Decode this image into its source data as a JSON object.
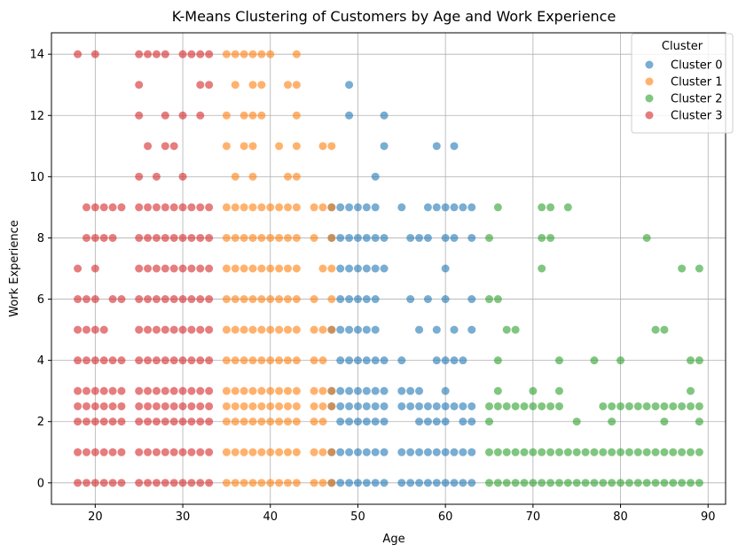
{
  "chart_data": {
    "type": "scatter",
    "title": "K-Means Clustering of Customers by Age and Work Experience",
    "xlabel": "Age",
    "ylabel": "Work Experience",
    "xlim": [
      15,
      92
    ],
    "ylim": [
      -0.7,
      14.7
    ],
    "xticks": [
      20,
      30,
      40,
      50,
      60,
      70,
      80,
      90
    ],
    "yticks": [
      0,
      2,
      4,
      6,
      8,
      10,
      12,
      14
    ],
    "grid": true,
    "legend": {
      "title": "Cluster",
      "position": "top-right"
    },
    "series": [
      {
        "name": "Cluster 0",
        "color": "#1f77b4",
        "x_range": [
          47,
          64
        ],
        "rows": [
          {
            "y": 0,
            "x": [
              47,
              48,
              49,
              50,
              51,
              52,
              53,
              55,
              56,
              57,
              58,
              59,
              60,
              61,
              62,
              63
            ]
          },
          {
            "y": 1,
            "x": [
              47,
              48,
              49,
              50,
              51,
              52,
              53,
              55,
              56,
              57,
              58,
              59,
              60,
              61,
              62,
              63
            ]
          },
          {
            "y": 2,
            "x": [
              48,
              49,
              50,
              51,
              52,
              53,
              57,
              58,
              59,
              60,
              62,
              63
            ]
          },
          {
            "y": 2.5,
            "x": [
              47,
              48,
              49,
              50,
              51,
              52,
              53,
              55,
              56,
              57,
              58,
              59,
              60,
              61,
              62,
              63
            ]
          },
          {
            "y": 3,
            "x": [
              47,
              48,
              49,
              50,
              51,
              52,
              53,
              55,
              56,
              57,
              60
            ]
          },
          {
            "y": 4,
            "x": [
              48,
              49,
              50,
              51,
              52,
              53,
              55,
              59,
              60,
              61,
              62
            ]
          },
          {
            "y": 5,
            "x": [
              47,
              48,
              49,
              50,
              51,
              52,
              57,
              59,
              61,
              63
            ]
          },
          {
            "y": 6,
            "x": [
              48,
              49,
              50,
              51,
              52,
              56,
              58,
              60,
              63
            ]
          },
          {
            "y": 7,
            "x": [
              48,
              49,
              50,
              51,
              52,
              53,
              60
            ]
          },
          {
            "y": 8,
            "x": [
              47,
              48,
              49,
              50,
              51,
              52,
              53,
              56,
              57,
              58,
              60,
              61,
              63
            ]
          },
          {
            "y": 9,
            "x": [
              47,
              48,
              49,
              50,
              51,
              52,
              55,
              58,
              59,
              60,
              61,
              62,
              63
            ]
          },
          {
            "y": 10,
            "x": [
              52
            ]
          },
          {
            "y": 11,
            "x": [
              53,
              59,
              61
            ]
          },
          {
            "y": 12,
            "x": [
              49,
              53
            ]
          },
          {
            "y": 13,
            "x": [
              49
            ]
          }
        ]
      },
      {
        "name": "Cluster 1",
        "color": "#ff7f0e",
        "x_range": [
          35,
          47
        ],
        "rows": [
          {
            "y": 0,
            "x": [
              35,
              36,
              37,
              38,
              39,
              40,
              41,
              42,
              43,
              45,
              46,
              47
            ]
          },
          {
            "y": 1,
            "x": [
              35,
              36,
              37,
              38,
              39,
              40,
              41,
              42,
              43,
              45,
              46,
              47
            ]
          },
          {
            "y": 2,
            "x": [
              35,
              36,
              37,
              38,
              39,
              40,
              41,
              42,
              43,
              45,
              46
            ]
          },
          {
            "y": 2.5,
            "x": [
              35,
              36,
              37,
              38,
              39,
              40,
              41,
              42,
              43,
              45,
              46,
              47
            ]
          },
          {
            "y": 3,
            "x": [
              35,
              36,
              37,
              38,
              39,
              40,
              41,
              42,
              43,
              45,
              46,
              47
            ]
          },
          {
            "y": 4,
            "x": [
              35,
              36,
              37,
              38,
              39,
              40,
              41,
              42,
              43,
              45,
              46
            ]
          },
          {
            "y": 5,
            "x": [
              35,
              36,
              37,
              38,
              39,
              40,
              41,
              42,
              43,
              45,
              46,
              47
            ]
          },
          {
            "y": 6,
            "x": [
              35,
              36,
              37,
              38,
              39,
              40,
              41,
              42,
              43,
              45,
              47
            ]
          },
          {
            "y": 7,
            "x": [
              35,
              36,
              37,
              38,
              39,
              40,
              41,
              42,
              43,
              46,
              47
            ]
          },
          {
            "y": 8,
            "x": [
              35,
              36,
              37,
              38,
              39,
              40,
              41,
              42,
              43,
              45,
              47
            ]
          },
          {
            "y": 9,
            "x": [
              35,
              36,
              37,
              38,
              39,
              40,
              41,
              42,
              43,
              45,
              46,
              47
            ]
          },
          {
            "y": 10,
            "x": [
              36,
              38,
              42,
              43
            ]
          },
          {
            "y": 11,
            "x": [
              35,
              37,
              38,
              41,
              43,
              46,
              47
            ]
          },
          {
            "y": 12,
            "x": [
              35,
              37,
              38,
              39,
              43
            ]
          },
          {
            "y": 13,
            "x": [
              36,
              38,
              39,
              42,
              43
            ]
          },
          {
            "y": 14,
            "x": [
              35,
              36,
              37,
              38,
              39,
              40,
              43
            ]
          }
        ]
      },
      {
        "name": "Cluster 2",
        "color": "#2ca02c",
        "x_range": [
          65,
          89
        ],
        "rows": [
          {
            "y": 0,
            "x": [
              65,
              66,
              67,
              68,
              69,
              70,
              71,
              72,
              73,
              74,
              75,
              76,
              77,
              78,
              79,
              80,
              81,
              82,
              83,
              84,
              85,
              86,
              87,
              88,
              89
            ]
          },
          {
            "y": 1,
            "x": [
              65,
              66,
              67,
              68,
              69,
              70,
              71,
              72,
              73,
              74,
              75,
              76,
              77,
              78,
              79,
              80,
              81,
              82,
              83,
              84,
              85,
              86,
              87,
              88,
              89
            ]
          },
          {
            "y": 2,
            "x": [
              65,
              75,
              79,
              85,
              89
            ]
          },
          {
            "y": 2.5,
            "x": [
              65,
              66,
              67,
              68,
              69,
              70,
              71,
              72,
              73,
              78,
              79,
              80,
              81,
              82,
              83,
              84,
              85,
              86,
              87,
              88,
              89
            ]
          },
          {
            "y": 3,
            "x": [
              66,
              70,
              73,
              88
            ]
          },
          {
            "y": 4,
            "x": [
              66,
              73,
              77,
              80,
              88,
              89
            ]
          },
          {
            "y": 5,
            "x": [
              67,
              68,
              84,
              85
            ]
          },
          {
            "y": 6,
            "x": [
              65,
              66
            ]
          },
          {
            "y": 7,
            "x": [
              71,
              87,
              89
            ]
          },
          {
            "y": 8,
            "x": [
              65,
              71,
              72,
              83
            ]
          },
          {
            "y": 9,
            "x": [
              66,
              71,
              72,
              74
            ]
          }
        ]
      },
      {
        "name": "Cluster 3",
        "color": "#d62728",
        "x_range": [
          18,
          33
        ],
        "rows": [
          {
            "y": 0,
            "x": [
              18,
              19,
              20,
              21,
              22,
              23,
              25,
              26,
              27,
              28,
              29,
              30,
              31,
              32,
              33
            ]
          },
          {
            "y": 1,
            "x": [
              18,
              19,
              20,
              21,
              22,
              23,
              25,
              26,
              27,
              28,
              29,
              30,
              31,
              32,
              33
            ]
          },
          {
            "y": 2,
            "x": [
              18,
              19,
              20,
              21,
              22,
              23,
              25,
              26,
              27,
              28,
              29,
              30,
              31,
              32,
              33
            ]
          },
          {
            "y": 2.5,
            "x": [
              18,
              19,
              20,
              21,
              22,
              23,
              25,
              26,
              27,
              28,
              29,
              30,
              31,
              32,
              33
            ]
          },
          {
            "y": 3,
            "x": [
              18,
              19,
              20,
              21,
              22,
              23,
              25,
              26,
              27,
              28,
              29,
              30,
              31,
              32,
              33
            ]
          },
          {
            "y": 4,
            "x": [
              18,
              19,
              20,
              21,
              22,
              23,
              25,
              26,
              27,
              28,
              29,
              30,
              31,
              32,
              33
            ]
          },
          {
            "y": 5,
            "x": [
              18,
              19,
              20,
              21,
              25,
              26,
              27,
              28,
              29,
              30,
              31,
              32,
              33
            ]
          },
          {
            "y": 6,
            "x": [
              18,
              19,
              20,
              22,
              23,
              25,
              26,
              27,
              28,
              29,
              30,
              31,
              32,
              33
            ]
          },
          {
            "y": 7,
            "x": [
              18,
              20,
              25,
              26,
              27,
              28,
              29,
              30,
              31,
              32,
              33
            ]
          },
          {
            "y": 8,
            "x": [
              19,
              20,
              21,
              22,
              25,
              26,
              27,
              28,
              29,
              30,
              31,
              32,
              33
            ]
          },
          {
            "y": 9,
            "x": [
              19,
              20,
              21,
              22,
              23,
              25,
              26,
              27,
              28,
              29,
              30,
              31,
              32,
              33
            ]
          },
          {
            "y": 10,
            "x": [
              25,
              27,
              30
            ]
          },
          {
            "y": 11,
            "x": [
              26,
              28,
              29
            ]
          },
          {
            "y": 12,
            "x": [
              25,
              28,
              30,
              32
            ]
          },
          {
            "y": 13,
            "x": [
              25,
              32,
              33
            ]
          },
          {
            "y": 14,
            "x": [
              18,
              20,
              25,
              26,
              27,
              28,
              30,
              31,
              32,
              33
            ]
          }
        ]
      }
    ]
  }
}
